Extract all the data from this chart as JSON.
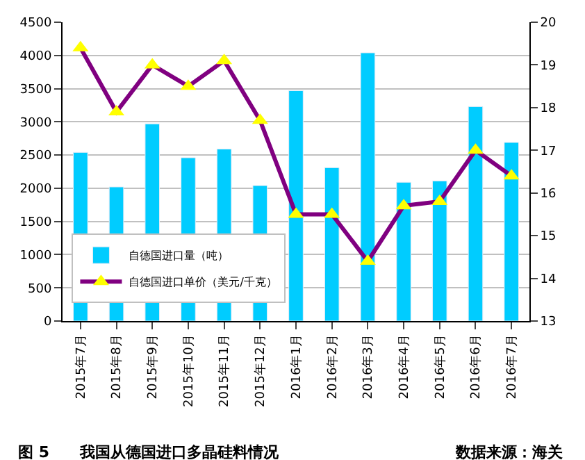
{
  "chart_data": {
    "type": "bar",
    "categories": [
      "2015年7月",
      "2015年8月",
      "2015年9月",
      "2015年10月",
      "2015年11月",
      "2015年12月",
      "2016年1月",
      "2016年2月",
      "2016年3月",
      "2016年4月",
      "2016年5月",
      "2016年6月",
      "2016年7月"
    ],
    "series": [
      {
        "name": "自德国进口量（吨）",
        "color": "#00ccff",
        "values": [
          2540,
          2020,
          2970,
          2460,
          2590,
          2040,
          3470,
          2310,
          4040,
          2090,
          2110,
          3230,
          2690
        ]
      },
      {
        "name": "自德国进口单价（美元/千克）",
        "type": "line",
        "axis": "y2",
        "color": "#800080",
        "marker": "triangle",
        "values": [
          19.4,
          17.9,
          19.0,
          18.5,
          19.1,
          17.7,
          15.5,
          15.5,
          14.4,
          15.7,
          15.8,
          17.0,
          16.4
        ]
      }
    ],
    "ylim": [
      0,
      4500
    ],
    "yticks": [
      0,
      500,
      1000,
      1500,
      2000,
      2500,
      3000,
      3500,
      4000,
      4500
    ],
    "y2lim": [
      13,
      20
    ],
    "y2ticks": [
      13,
      14,
      15,
      16,
      17,
      18,
      19,
      20
    ],
    "grid": "y",
    "legend": "bottom left",
    "annotations": [
      "图 5　　我国从德国进口多晶硅料情况",
      "数据来源：海关"
    ]
  }
}
